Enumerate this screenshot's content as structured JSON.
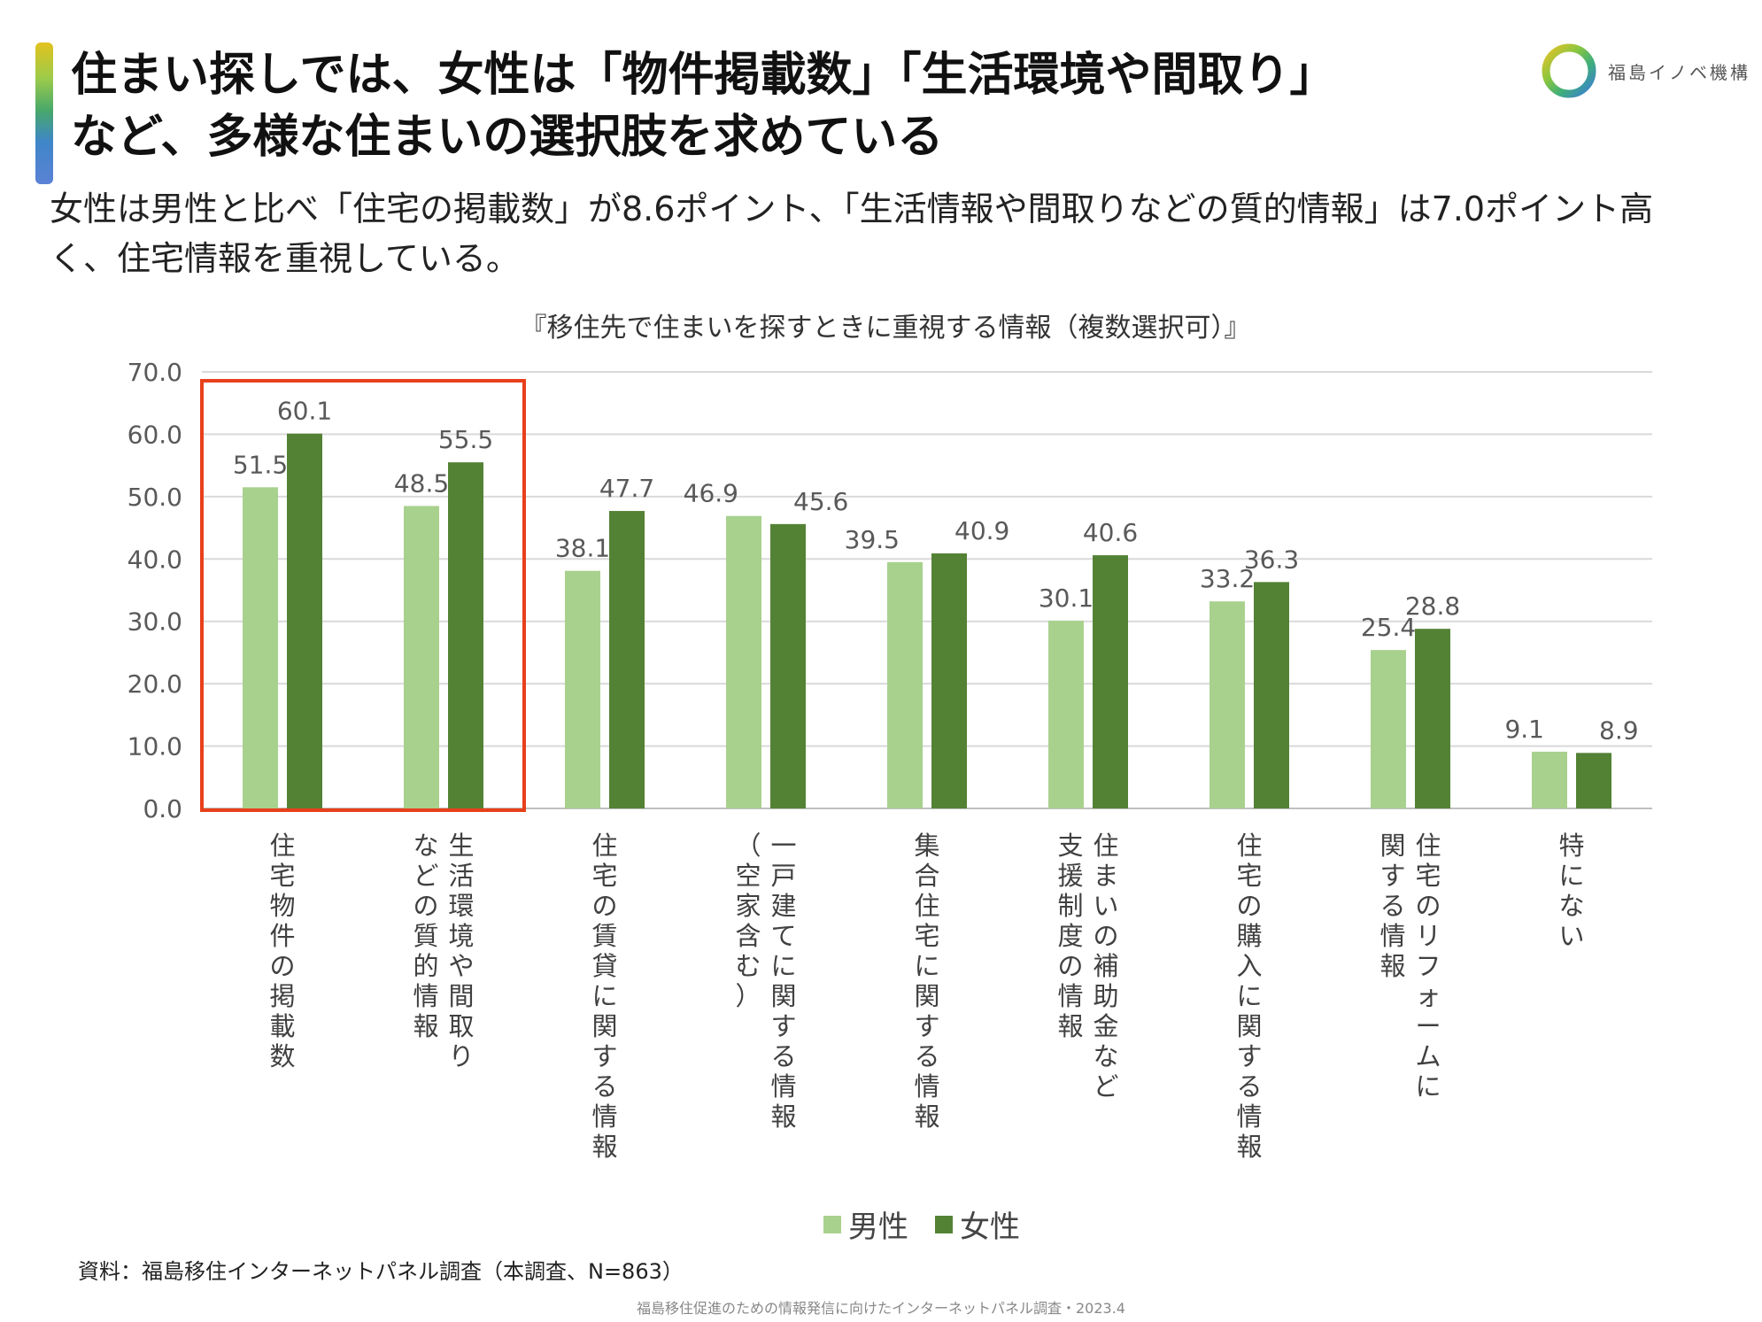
{
  "header": {
    "title_line1": "住まい探しでは、女性は「物件掲載数」「生活環境や間取り」",
    "title_line2": "など、多様な住まいの選択肢を求めている",
    "logo_text": "福島イノベ機構",
    "subtitle": "女性は男性と比べ「住宅の掲載数」が8.6ポイント、「生活情報や間取りなどの質的情報」は7.0ポイント高く、住宅情報を重視している。"
  },
  "colors": {
    "male": "#a9d18e",
    "female": "#548235",
    "highlight": "#e8401c",
    "grid": "#d9d9d9"
  },
  "chart_data": {
    "type": "bar",
    "title": "『移住先で住まいを探すときに重視する情報（複数選択可）』",
    "categories": [
      [
        "住宅物件の掲載数"
      ],
      [
        "生活環境や間取り",
        "などの質的情報"
      ],
      [
        "住宅の賃貸に関する情報"
      ],
      [
        "一戸建てに関する情報",
        "（空家含む）"
      ],
      [
        "集合住宅に関する情報"
      ],
      [
        "住まいの補助金など",
        "支援制度の情報"
      ],
      [
        "住宅の購入に関する情報"
      ],
      [
        "住宅のリフォームに",
        "関する情報"
      ],
      [
        "特にない"
      ]
    ],
    "series": [
      {
        "name": "男性",
        "values": [
          51.5,
          48.5,
          38.1,
          46.9,
          39.5,
          30.1,
          33.2,
          25.4,
          9.1
        ]
      },
      {
        "name": "女性",
        "values": [
          60.1,
          55.5,
          47.7,
          45.6,
          40.9,
          40.6,
          36.3,
          28.8,
          8.9
        ]
      }
    ],
    "y_ticks": [
      "0.0",
      "10.0",
      "20.0",
      "30.0",
      "40.0",
      "50.0",
      "60.0",
      "70.0"
    ],
    "ylim": [
      0,
      70
    ],
    "highlighted_categories": [
      0,
      1
    ],
    "legend_position": "bottom-center",
    "xlabel": "",
    "ylabel": ""
  },
  "source": "資料：福島移住インターネットパネル調査（本調査、N=863）",
  "footer": "福島移住促進のための情報発信に向けたインターネットパネル調査・2023.4"
}
